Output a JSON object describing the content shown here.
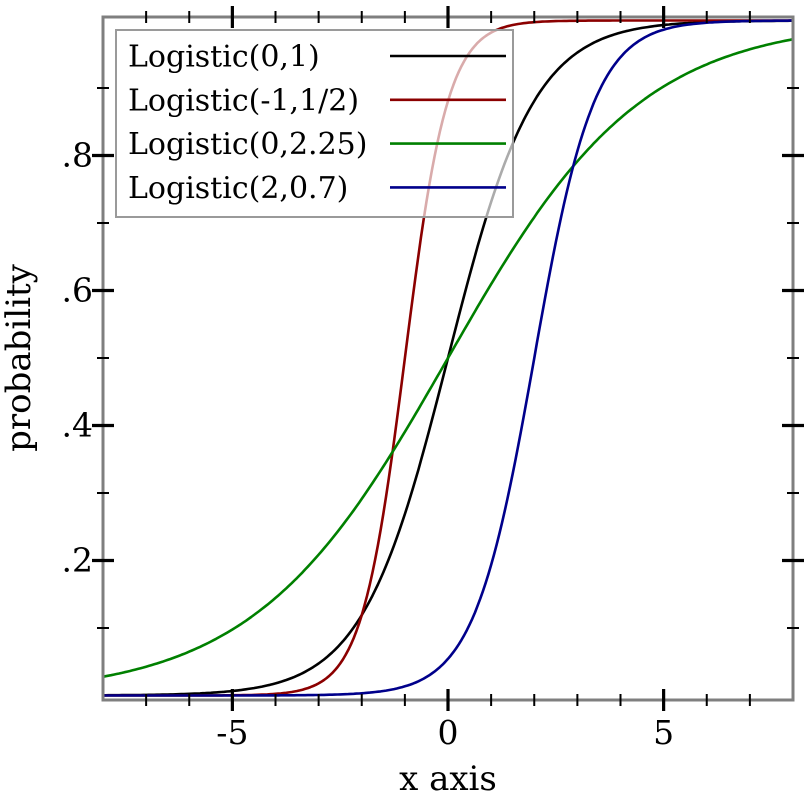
{
  "figure": {
    "legend": {
      "entries": [
        {
          "label": "Logistic(0,1)",
          "color": "#000000"
        },
        {
          "label": "Logistic(-1,1/2)",
          "color": "#8b0000"
        },
        {
          "label": "Logistic(0,2.25)",
          "color": "#008000"
        },
        {
          "label": "Logistic(2,0.7)",
          "color": "#00008b"
        }
      ]
    }
  },
  "chart_data": {
    "type": "line",
    "title": "",
    "subtitle": "",
    "curve_function": "logistic_cdf  F(x) = 1 / (1 + exp(-(x - mu)/s))",
    "xlabel": "x axis",
    "ylabel": "probability",
    "xlim": [
      -8,
      8
    ],
    "ylim": [
      0,
      1
    ],
    "grid": false,
    "legend_position": "top-left",
    "x_ticks_major": [
      -5,
      0,
      5
    ],
    "x_tick_labels": [
      "-5",
      "0",
      "5"
    ],
    "x_ticks_minor": [
      -7,
      -6,
      -4,
      -3,
      -2,
      -1,
      1,
      2,
      3,
      4,
      6,
      7
    ],
    "y_ticks_major": [
      0.2,
      0.4,
      0.6,
      0.8
    ],
    "y_tick_labels": [
      ".2",
      ".4",
      ".6",
      ".8"
    ],
    "y_ticks_minor": [
      0.1,
      0.3,
      0.5,
      0.7,
      0.9
    ],
    "series": [
      {
        "name": "Logistic(0,1)",
        "mu": 0,
        "s": 1,
        "color": "#000000"
      },
      {
        "name": "Logistic(-1,1/2)",
        "mu": -1,
        "s": 0.5,
        "color": "#8b0000"
      },
      {
        "name": "Logistic(0,2.25)",
        "mu": 0,
        "s": 2.25,
        "color": "#008000"
      },
      {
        "name": "Logistic(2,0.7)",
        "mu": 2,
        "s": 0.7,
        "color": "#00008b"
      }
    ],
    "samples": {
      "x": [
        -8,
        -7,
        -6,
        -5,
        -4,
        -3,
        -2,
        -1,
        0,
        1,
        2,
        3,
        4,
        5,
        6,
        7,
        8
      ],
      "values": {
        "Logistic(0,1)": [
          0.0003,
          0.0009,
          0.0025,
          0.0067,
          0.018,
          0.0474,
          0.1192,
          0.2689,
          0.5,
          0.7311,
          0.8808,
          0.9526,
          0.982,
          0.9933,
          0.9975,
          0.9991,
          0.9997
        ],
        "Logistic(-1,1/2)": [
          0.0,
          0.0,
          0.0,
          0.0003,
          0.0025,
          0.018,
          0.1192,
          0.5,
          0.8808,
          0.982,
          0.9975,
          0.9997,
          1.0,
          1.0,
          1.0,
          1.0,
          1.0
        ],
        "Logistic(0,2.25)": [
          0.0278,
          0.0427,
          0.0652,
          0.0977,
          0.1446,
          0.2086,
          0.2913,
          0.3907,
          0.5,
          0.6093,
          0.7087,
          0.7914,
          0.8554,
          0.9023,
          0.9348,
          0.9573,
          0.9722
        ],
        "Logistic(2,0.7)": [
          0.0,
          0.0,
          0.0,
          0.0,
          0.0002,
          0.0008,
          0.0032,
          0.0132,
          0.0543,
          0.1932,
          0.5,
          0.8068,
          0.9457,
          0.9868,
          0.9968,
          0.9992,
          0.9998
        ]
      }
    }
  },
  "colors": {
    "frame": "#7f7f7f",
    "tick": "#000000",
    "text": "#000000",
    "legend_border": "#9a9a9a",
    "legend_fill": "rgba(255,255,255,0.67)",
    "background": "#ffffff"
  }
}
